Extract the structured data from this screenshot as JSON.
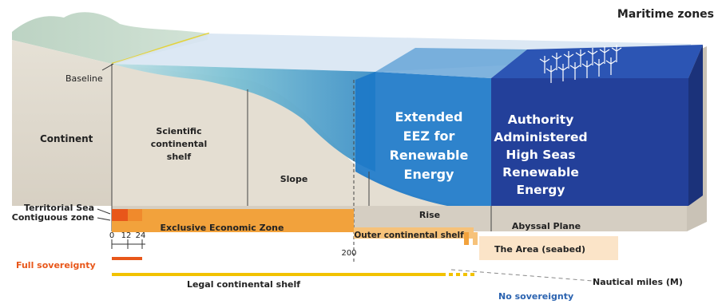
{
  "title": "Maritime zones",
  "labels": {
    "baseline": "Baseline",
    "continent": "Continent",
    "scientific_shelf": [
      "Scientific",
      "continental",
      "shelf"
    ],
    "slope": "Slope",
    "rise": "Rise",
    "abyssal_plane": "Abyssal Plane",
    "territorial_sea": "Territorial Sea",
    "contiguous_zone": "Contiguous zone",
    "eez": "Exclusive Economic Zone",
    "outer_shelf": "Outer continental shelf",
    "the_area": "The Area (seabed)",
    "full_sovereignty": "Full sovereignty",
    "legal_shelf": "Legal continental shelf",
    "no_sovereignty": "No sovereignty",
    "nautical_miles": "Nautical miles (M)"
  },
  "scale": {
    "ticks": [
      "0",
      "12",
      "24"
    ],
    "tick_200": "200"
  },
  "overlays": {
    "extended_eez": [
      "Extended",
      "EEZ for",
      "Renewable",
      "Energy"
    ],
    "high_seas": [
      "Authority",
      "Administered",
      "High Seas",
      "Renewable",
      "Energy"
    ]
  },
  "colors": {
    "territorial": "#e8571a",
    "contiguous": "#f08a2c",
    "eez": "#f2a23c",
    "outer_shelf": "#f6c27a",
    "area": "#fbe4c8",
    "legal_line": "#f2c200",
    "full_sovereignty": "#e8571a",
    "no_sovereignty": "#2b63b0",
    "extended_box": "#1c78c8",
    "high_seas_box": "#23409a"
  }
}
